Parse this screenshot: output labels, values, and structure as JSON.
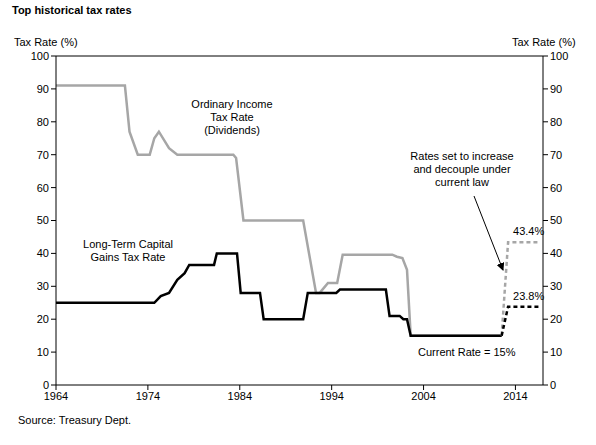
{
  "chart_data": {
    "type": "line",
    "title": "Top historical tax rates",
    "y_label": "Tax Rate (%)",
    "y2_label": "Tax Rate (%)",
    "source": "Source: Treasury Dept.",
    "xlim": [
      1964,
      2017
    ],
    "xticks": [
      1964,
      1974,
      1984,
      1994,
      2004,
      2014
    ],
    "ylim": [
      0,
      100
    ],
    "yticks": [
      0,
      10,
      20,
      30,
      40,
      50,
      60,
      70,
      80,
      90,
      100
    ],
    "y2lim": [
      0,
      100
    ],
    "y2ticks": [
      0,
      10,
      20,
      30,
      40,
      50,
      60,
      70,
      80,
      90,
      100
    ],
    "grid": false,
    "series": [
      {
        "name": "Ordinary Income\nTax Rate\n(Dividends)",
        "color": "#a6a6a6",
        "line_style": "solid",
        "x": [
          1964,
          1971.5,
          1972,
          1972.9,
          1974.2,
          1974.7,
          1975.2,
          1976.3,
          1977.2,
          1983.3,
          1983.6,
          1984.4,
          1990.9,
          1992.3,
          1992.7,
          1993.6,
          1994.6,
          1995.2,
          2000.6,
          2001.1,
          2001.7,
          2002.2,
          2002.6,
          2012.5
        ],
        "values": [
          91,
          91,
          77,
          70,
          70,
          75,
          77,
          72,
          70,
          70,
          69,
          50,
          50,
          28,
          28,
          31,
          31,
          39.6,
          39.6,
          39,
          38.6,
          35,
          15,
          15
        ]
      },
      {
        "name": "Long-Term Capital\nGains Tax Rate",
        "color": "#000000",
        "line_style": "solid",
        "x": [
          1964,
          1974.7,
          1975.4,
          1976.3,
          1977.2,
          1978,
          1978.5,
          1981.2,
          1981.5,
          1983.7,
          1984.1,
          1986.2,
          1986.6,
          1990.9,
          1991.4,
          1994.5,
          1994.9,
          1999.9,
          2000.3,
          2001.4,
          2001.8,
          2002.2,
          2002.6,
          2012.5
        ],
        "values": [
          25,
          25,
          27,
          28,
          32,
          34,
          36.5,
          36.5,
          40,
          40,
          28,
          28,
          20,
          20,
          28,
          28,
          29,
          29,
          21,
          21,
          20,
          20,
          15,
          15
        ]
      },
      {
        "color": "#a6a6a6",
        "line_style": "dashed",
        "x": [
          2012.5,
          2013.2,
          2016.6
        ],
        "values": [
          15,
          43.4,
          43.4
        ],
        "value_labels": [
          null,
          "43.4%",
          null
        ]
      },
      {
        "color": "#000000",
        "line_style": "dashed",
        "x": [
          2012.5,
          2013.2,
          2016.6
        ],
        "values": [
          15,
          23.8,
          23.8
        ],
        "value_labels": [
          null,
          "23.8%",
          null
        ]
      }
    ],
    "annotations": [
      {
        "text": "Rates set to increase\nand decouple under\ncurrent law"
      },
      {
        "text": "Current Rate = 15%"
      }
    ]
  }
}
